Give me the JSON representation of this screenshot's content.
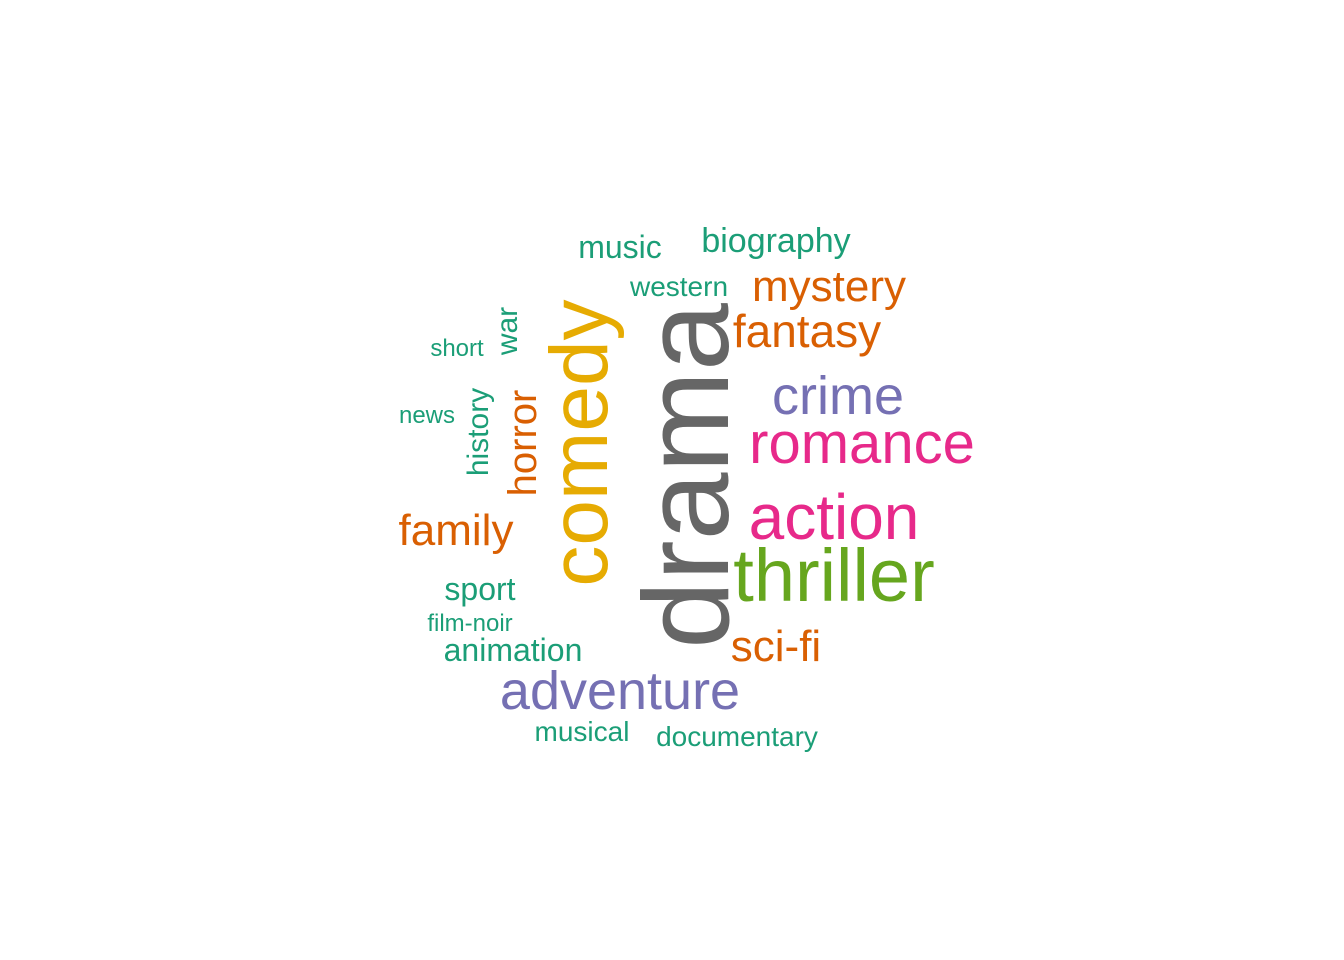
{
  "colors": {
    "teal": "#1b9e77",
    "orange": "#d95f02",
    "purple": "#7570b3",
    "magenta": "#e7298a",
    "green": "#66a61e",
    "gold": "#e6ab02",
    "gray": "#666666"
  },
  "words": {
    "drama": {
      "text": "drama",
      "color": "#666666",
      "rotated": true
    },
    "comedy": {
      "text": "comedy",
      "color": "#e6ab02",
      "rotated": true
    },
    "thriller": {
      "text": "thriller",
      "color": "#66a61e",
      "rotated": false
    },
    "action": {
      "text": "action",
      "color": "#e7298a",
      "rotated": false
    },
    "romance": {
      "text": "romance",
      "color": "#e7298a",
      "rotated": false
    },
    "adventure": {
      "text": "adventure",
      "color": "#7570b3",
      "rotated": false
    },
    "crime": {
      "text": "crime",
      "color": "#7570b3",
      "rotated": false
    },
    "fantasy": {
      "text": "fantasy",
      "color": "#d95f02",
      "rotated": false
    },
    "mystery": {
      "text": "mystery",
      "color": "#d95f02",
      "rotated": false
    },
    "scifi": {
      "text": "sci-fi",
      "color": "#d95f02",
      "rotated": false
    },
    "family": {
      "text": "family",
      "color": "#d95f02",
      "rotated": false
    },
    "horror": {
      "text": "horror",
      "color": "#d95f02",
      "rotated": true
    },
    "biography": {
      "text": "biography",
      "color": "#1b9e77",
      "rotated": false
    },
    "music": {
      "text": "music",
      "color": "#1b9e77",
      "rotated": false
    },
    "animation": {
      "text": "animation",
      "color": "#1b9e77",
      "rotated": false
    },
    "sport": {
      "text": "sport",
      "color": "#1b9e77",
      "rotated": false
    },
    "history": {
      "text": "history",
      "color": "#1b9e77",
      "rotated": true
    },
    "war": {
      "text": "war",
      "color": "#1b9e77",
      "rotated": true
    },
    "western": {
      "text": "western",
      "color": "#1b9e77",
      "rotated": false
    },
    "documentary": {
      "text": "documentary",
      "color": "#1b9e77",
      "rotated": false
    },
    "musical": {
      "text": "musical",
      "color": "#1b9e77",
      "rotated": false
    },
    "filmnoir": {
      "text": "film-noir",
      "color": "#1b9e77",
      "rotated": false
    },
    "short": {
      "text": "short",
      "color": "#1b9e77",
      "rotated": false
    },
    "news": {
      "text": "news",
      "color": "#1b9e77",
      "rotated": false
    }
  }
}
